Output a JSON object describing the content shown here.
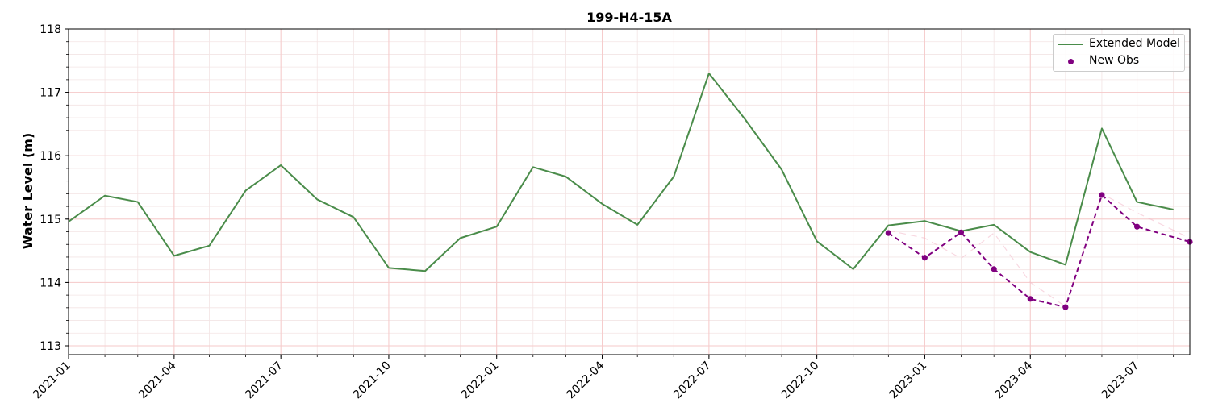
{
  "chart_data": {
    "type": "line",
    "title": "199-H4-15A",
    "ylabel": "Water Level (m)",
    "xlabel": "",
    "ylim": [
      112.86,
      118.0
    ],
    "xlim": [
      "2021-01-01",
      "2023-08-15"
    ],
    "y_ticks": [
      113,
      114,
      115,
      116,
      117,
      118
    ],
    "x_ticks": [
      "2021-01",
      "2021-04",
      "2021-07",
      "2021-10",
      "2022-01",
      "2022-04",
      "2022-07",
      "2022-10",
      "2023-01",
      "2023-04",
      "2023-07"
    ],
    "grid": true,
    "legend_position": "top-right",
    "series": [
      {
        "name": "Extended Model",
        "color": "#4a8c4a",
        "style": "solid",
        "x": [
          "2021-01-01",
          "2021-02-01",
          "2021-03-01",
          "2021-04-01",
          "2021-05-01",
          "2021-06-01",
          "2021-07-01",
          "2021-08-01",
          "2021-09-01",
          "2021-10-01",
          "2021-11-01",
          "2021-12-01",
          "2022-01-01",
          "2022-02-01",
          "2022-03-01",
          "2022-04-01",
          "2022-05-01",
          "2022-06-01",
          "2022-07-01",
          "2022-08-01",
          "2022-09-01",
          "2022-10-01",
          "2022-11-01",
          "2022-12-01",
          "2023-01-01",
          "2023-02-01",
          "2023-03-01",
          "2023-04-01",
          "2023-05-01",
          "2023-06-01",
          "2023-07-01",
          "2023-08-01"
        ],
        "values": [
          114.96,
          115.37,
          115.27,
          114.42,
          114.58,
          115.45,
          115.85,
          115.31,
          115.03,
          114.23,
          114.18,
          114.7,
          114.88,
          115.82,
          115.67,
          115.24,
          114.91,
          115.67,
          117.3,
          116.57,
          115.78,
          114.65,
          114.21,
          114.9,
          114.97,
          114.81,
          114.91,
          114.48,
          114.28,
          116.43,
          115.27,
          115.15
        ]
      },
      {
        "name": "New Obs",
        "color": "#800080",
        "style": "dashed-markers",
        "x": [
          "2022-12-01",
          "2023-01-01",
          "2023-02-01",
          "2023-03-01",
          "2023-04-01",
          "2023-05-01",
          "2023-06-01",
          "2023-07-01",
          "2023-08-15"
        ],
        "values": [
          114.78,
          114.39,
          114.79,
          114.21,
          113.74,
          113.61,
          115.38,
          114.88,
          114.64
        ]
      },
      {
        "name": "",
        "color": "#f2b8c8",
        "style": "faint-dashed",
        "x": [
          "2022-12-01",
          "2023-01-01",
          "2023-02-01",
          "2023-03-01",
          "2023-04-01",
          "2023-05-01",
          "2023-06-01",
          "2023-07-01",
          "2023-08-15"
        ],
        "values": [
          114.82,
          114.7,
          114.38,
          114.78,
          114.0,
          113.62,
          115.4,
          115.1,
          114.7
        ]
      }
    ]
  }
}
